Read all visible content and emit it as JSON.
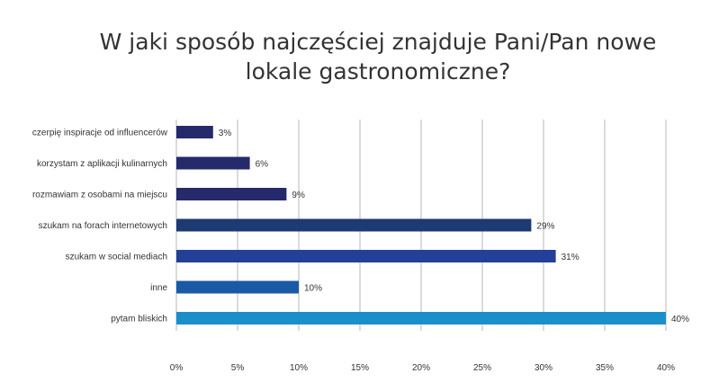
{
  "chart_data": {
    "type": "bar",
    "orientation": "horizontal",
    "title_lines": [
      "W jaki sposób najczęściej znajduje Pani/Pan nowe",
      "lokale gastronomiczne?"
    ],
    "categories": [
      "czerpię inspiracje od influencerów",
      "korzystam z aplikacji kulinarnych",
      "rozmawiam z osobami na miejscu",
      "szukam na forach internetowych",
      "szukam w social mediach",
      "inne",
      "pytam bliskich"
    ],
    "values": [
      3,
      6,
      9,
      29,
      31,
      10,
      40
    ],
    "value_labels": [
      "3%",
      "6%",
      "9%",
      "29%",
      "31%",
      "10%",
      "40%"
    ],
    "bar_colors": [
      "#252a6b",
      "#252a6b",
      "#252a6b",
      "#1d3a73",
      "#233f97",
      "#1a59a5",
      "#1a8fca"
    ],
    "x_ticks": [
      0,
      5,
      10,
      15,
      20,
      25,
      30,
      35,
      40
    ],
    "x_tick_labels": [
      "0%",
      "5%",
      "10%",
      "15%",
      "20%",
      "25%",
      "30%",
      "35%",
      "40%"
    ],
    "xlim": [
      0,
      40
    ],
    "grid": true,
    "xlabel": "",
    "ylabel": ""
  }
}
